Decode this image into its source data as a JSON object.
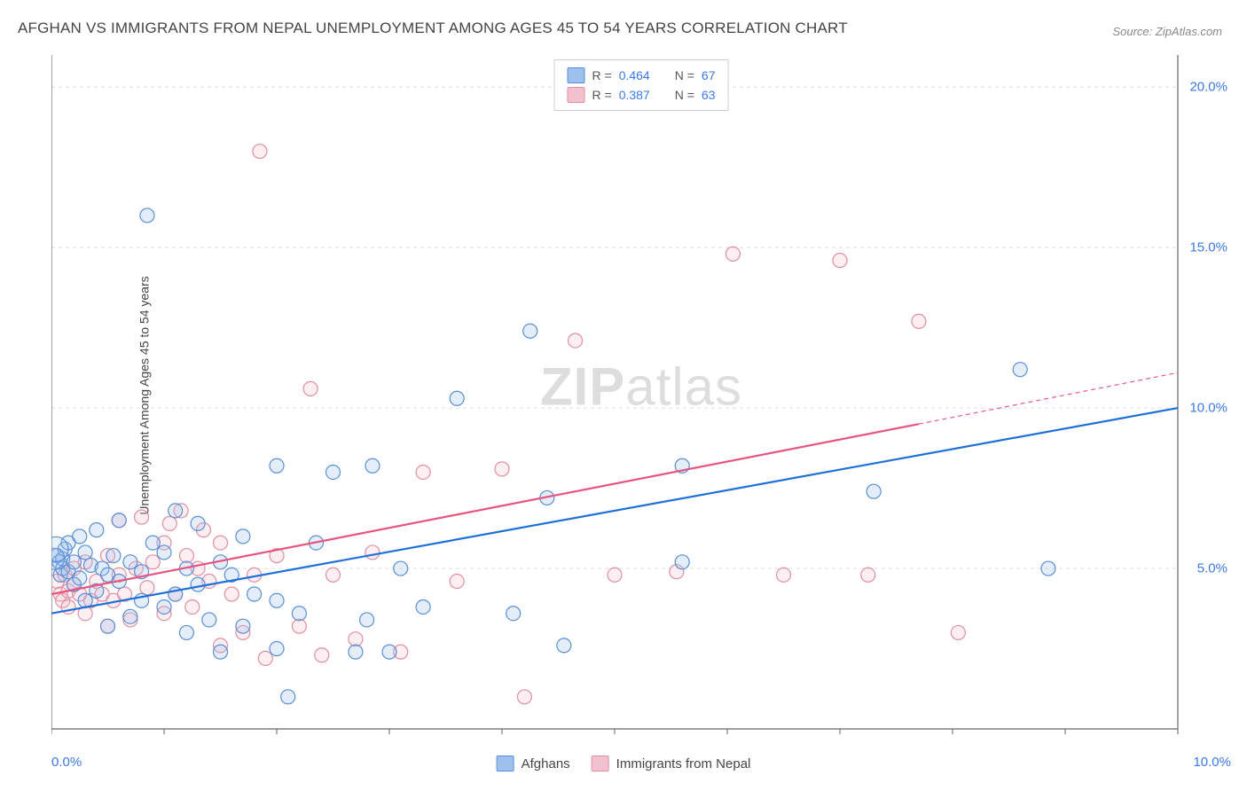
{
  "title": "AFGHAN VS IMMIGRANTS FROM NEPAL UNEMPLOYMENT AMONG AGES 45 TO 54 YEARS CORRELATION CHART",
  "source": "Source: ZipAtlas.com",
  "ylabel": "Unemployment Among Ages 45 to 54 years",
  "watermark_bold": "ZIP",
  "watermark_rest": "atlas",
  "chart": {
    "type": "scatter",
    "xlim": [
      0,
      10
    ],
    "ylim": [
      0,
      21
    ],
    "xticks": [
      0,
      1,
      2,
      3,
      4,
      5,
      6,
      7,
      8,
      9,
      10
    ],
    "yticks_major": [
      5,
      10,
      15,
      20
    ],
    "x_axis_label_left": "0.0%",
    "x_axis_label_right": "10.0%",
    "y_tick_labels": [
      "5.0%",
      "10.0%",
      "15.0%",
      "20.0%"
    ],
    "background_color": "#ffffff",
    "gridline_color": "#dddddd",
    "axis_color": "#666666",
    "tick_color": "#666666",
    "marker_radius": 8,
    "marker_stroke_width": 1.2,
    "marker_fill_opacity": 0.28,
    "line_width": 2.2,
    "series": [
      {
        "name": "Afghans",
        "color_stroke": "#5a8fd6",
        "color_fill": "#9dc0ec",
        "line_color": "#1f6fd8",
        "R": "0.464",
        "N": "67",
        "regression": {
          "x1": 0.0,
          "y1": 3.6,
          "x2": 10.0,
          "y2": 10.0
        },
        "points": [
          [
            0.05,
            5.4
          ],
          [
            0.07,
            5.2
          ],
          [
            0.08,
            4.8
          ],
          [
            0.1,
            5.0
          ],
          [
            0.1,
            5.3
          ],
          [
            0.12,
            5.6
          ],
          [
            0.15,
            4.9
          ],
          [
            0.15,
            5.8
          ],
          [
            0.2,
            4.5
          ],
          [
            0.2,
            5.2
          ],
          [
            0.25,
            4.7
          ],
          [
            0.25,
            6.0
          ],
          [
            0.3,
            4.0
          ],
          [
            0.3,
            5.5
          ],
          [
            0.35,
            5.1
          ],
          [
            0.4,
            4.3
          ],
          [
            0.4,
            6.2
          ],
          [
            0.45,
            5.0
          ],
          [
            0.5,
            3.2
          ],
          [
            0.5,
            4.8
          ],
          [
            0.55,
            5.4
          ],
          [
            0.6,
            4.6
          ],
          [
            0.6,
            6.5
          ],
          [
            0.7,
            3.5
          ],
          [
            0.7,
            5.2
          ],
          [
            0.8,
            4.0
          ],
          [
            0.8,
            4.9
          ],
          [
            0.85,
            16.0
          ],
          [
            0.9,
            5.8
          ],
          [
            1.0,
            3.8
          ],
          [
            1.0,
            5.5
          ],
          [
            1.1,
            4.2
          ],
          [
            1.1,
            6.8
          ],
          [
            1.2,
            3.0
          ],
          [
            1.2,
            5.0
          ],
          [
            1.3,
            4.5
          ],
          [
            1.3,
            6.4
          ],
          [
            1.4,
            3.4
          ],
          [
            1.5,
            2.4
          ],
          [
            1.5,
            5.2
          ],
          [
            1.6,
            4.8
          ],
          [
            1.7,
            3.2
          ],
          [
            1.7,
            6.0
          ],
          [
            1.8,
            4.2
          ],
          [
            2.0,
            2.5
          ],
          [
            2.0,
            4.0
          ],
          [
            2.0,
            8.2
          ],
          [
            2.1,
            1.0
          ],
          [
            2.2,
            3.6
          ],
          [
            2.35,
            5.8
          ],
          [
            2.5,
            8.0
          ],
          [
            2.7,
            2.4
          ],
          [
            2.8,
            3.4
          ],
          [
            2.85,
            8.2
          ],
          [
            3.0,
            2.4
          ],
          [
            3.1,
            5.0
          ],
          [
            3.3,
            3.8
          ],
          [
            3.6,
            10.3
          ],
          [
            4.1,
            3.6
          ],
          [
            4.25,
            12.4
          ],
          [
            4.4,
            7.2
          ],
          [
            4.55,
            2.6
          ],
          [
            5.6,
            8.2
          ],
          [
            5.6,
            5.2
          ],
          [
            7.3,
            7.4
          ],
          [
            8.6,
            11.2
          ],
          [
            8.85,
            5.0
          ]
        ]
      },
      {
        "name": "Immigrants from Nepal",
        "color_stroke": "#e08fa2",
        "color_fill": "#f3c1cd",
        "line_color": "#e75480",
        "R": "0.387",
        "N": "63",
        "regression": {
          "x1": 0.0,
          "y1": 4.2,
          "x2": 7.7,
          "y2": 9.5
        },
        "regression_dash": {
          "x1": 7.7,
          "y1": 9.5,
          "x2": 10.0,
          "y2": 11.1
        },
        "points": [
          [
            0.05,
            4.6
          ],
          [
            0.08,
            4.2
          ],
          [
            0.1,
            4.0
          ],
          [
            0.12,
            4.8
          ],
          [
            0.15,
            4.3
          ],
          [
            0.15,
            3.8
          ],
          [
            0.2,
            4.5
          ],
          [
            0.2,
            5.0
          ],
          [
            0.25,
            4.2
          ],
          [
            0.3,
            3.6
          ],
          [
            0.3,
            5.2
          ],
          [
            0.35,
            4.0
          ],
          [
            0.4,
            4.6
          ],
          [
            0.45,
            4.2
          ],
          [
            0.5,
            3.2
          ],
          [
            0.5,
            5.4
          ],
          [
            0.55,
            4.0
          ],
          [
            0.6,
            4.8
          ],
          [
            0.6,
            6.5
          ],
          [
            0.65,
            4.2
          ],
          [
            0.7,
            3.4
          ],
          [
            0.75,
            5.0
          ],
          [
            0.8,
            6.6
          ],
          [
            0.85,
            4.4
          ],
          [
            0.9,
            5.2
          ],
          [
            1.0,
            3.6
          ],
          [
            1.0,
            5.8
          ],
          [
            1.05,
            6.4
          ],
          [
            1.1,
            4.2
          ],
          [
            1.15,
            6.8
          ],
          [
            1.2,
            5.4
          ],
          [
            1.25,
            3.8
          ],
          [
            1.3,
            5.0
          ],
          [
            1.35,
            6.2
          ],
          [
            1.4,
            4.6
          ],
          [
            1.5,
            2.6
          ],
          [
            1.5,
            5.8
          ],
          [
            1.6,
            4.2
          ],
          [
            1.7,
            3.0
          ],
          [
            1.8,
            4.8
          ],
          [
            1.85,
            18.0
          ],
          [
            1.9,
            2.2
          ],
          [
            2.0,
            5.4
          ],
          [
            2.2,
            3.2
          ],
          [
            2.3,
            10.6
          ],
          [
            2.4,
            2.3
          ],
          [
            2.5,
            4.8
          ],
          [
            2.7,
            2.8
          ],
          [
            2.85,
            5.5
          ],
          [
            3.1,
            2.4
          ],
          [
            3.3,
            8.0
          ],
          [
            3.6,
            4.6
          ],
          [
            4.0,
            8.1
          ],
          [
            4.2,
            1.0
          ],
          [
            4.65,
            12.1
          ],
          [
            5.0,
            4.8
          ],
          [
            5.55,
            4.9
          ],
          [
            6.05,
            14.8
          ],
          [
            6.5,
            4.8
          ],
          [
            7.0,
            14.6
          ],
          [
            7.25,
            4.8
          ],
          [
            7.7,
            12.7
          ],
          [
            8.05,
            3.0
          ]
        ]
      }
    ]
  },
  "legend_top_labels": {
    "R_prefix": "R =",
    "N_prefix": "N ="
  },
  "legend_bottom": [
    {
      "label": "Afghans",
      "stroke": "#5a8fd6",
      "fill": "#9dc0ec"
    },
    {
      "label": "Immigrants from Nepal",
      "stroke": "#e08fa2",
      "fill": "#f3c1cd"
    }
  ]
}
